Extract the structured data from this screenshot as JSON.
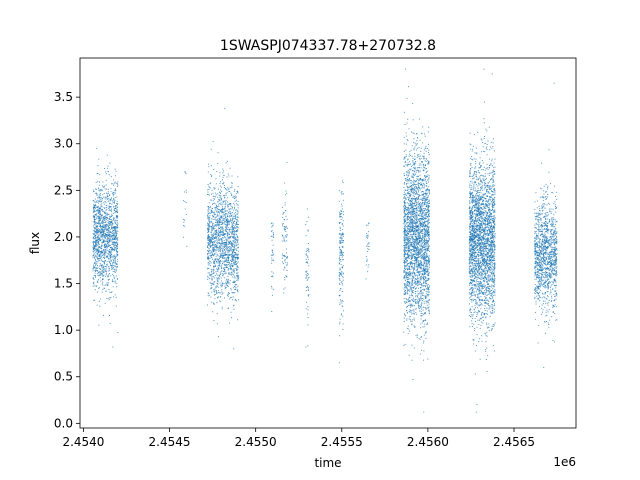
{
  "chart_data": {
    "type": "scatter",
    "title": "1SWASPJ074337.78+270732.8",
    "xlabel": "time",
    "ylabel": "flux",
    "x_offset_label": "1e6",
    "xlim": [
      2453980,
      2456860
    ],
    "ylim": [
      -0.05,
      3.92
    ],
    "x_ticks": [
      {
        "value": 2454000,
        "label": "2.4540"
      },
      {
        "value": 2454500,
        "label": "2.4545"
      },
      {
        "value": 2455000,
        "label": "2.4550"
      },
      {
        "value": 2455500,
        "label": "2.4555"
      },
      {
        "value": 2456000,
        "label": "2.4560"
      },
      {
        "value": 2456500,
        "label": "2.4565"
      }
    ],
    "y_ticks": [
      {
        "value": 0.0,
        "label": "0.0"
      },
      {
        "value": 0.5,
        "label": "0.5"
      },
      {
        "value": 1.0,
        "label": "1.0"
      },
      {
        "value": 1.5,
        "label": "1.5"
      },
      {
        "value": 2.0,
        "label": "2.0"
      },
      {
        "value": 2.5,
        "label": "2.5"
      },
      {
        "value": 3.0,
        "label": "3.0"
      },
      {
        "value": 3.5,
        "label": "3.5"
      }
    ],
    "marker_color": "#1f77b4",
    "grid": false,
    "clusters": [
      {
        "x_start": 2454055,
        "x_end": 2454200,
        "y_center": 2.0,
        "y_spread": 0.28,
        "y_min": 0.82,
        "y_max": 2.95,
        "count": 1400
      },
      {
        "x_start": 2454580,
        "x_end": 2454600,
        "y_center": 2.3,
        "y_spread": 0.25,
        "y_min": 1.9,
        "y_max": 2.7,
        "count": 18
      },
      {
        "x_start": 2454720,
        "x_end": 2454900,
        "y_center": 1.95,
        "y_spread": 0.3,
        "y_min": 0.8,
        "y_max": 3.38,
        "count": 1600
      },
      {
        "x_start": 2455090,
        "x_end": 2455105,
        "y_center": 1.75,
        "y_spread": 0.25,
        "y_min": 1.2,
        "y_max": 2.15,
        "count": 40
      },
      {
        "x_start": 2455155,
        "x_end": 2455185,
        "y_center": 2.0,
        "y_spread": 0.25,
        "y_min": 1.4,
        "y_max": 2.8,
        "count": 80
      },
      {
        "x_start": 2455290,
        "x_end": 2455310,
        "y_center": 1.6,
        "y_spread": 0.35,
        "y_min": 0.82,
        "y_max": 2.3,
        "count": 60
      },
      {
        "x_start": 2455485,
        "x_end": 2455510,
        "y_center": 1.8,
        "y_spread": 0.35,
        "y_min": 0.65,
        "y_max": 2.6,
        "count": 180
      },
      {
        "x_start": 2455640,
        "x_end": 2455660,
        "y_center": 1.9,
        "y_spread": 0.15,
        "y_min": 1.55,
        "y_max": 2.15,
        "count": 30
      },
      {
        "x_start": 2455860,
        "x_end": 2456010,
        "y_center": 2.0,
        "y_spread": 0.45,
        "y_min": 0.12,
        "y_max": 3.8,
        "count": 2600
      },
      {
        "x_start": 2456240,
        "x_end": 2456390,
        "y_center": 1.95,
        "y_spread": 0.42,
        "y_min": 0.12,
        "y_max": 3.8,
        "count": 2600
      },
      {
        "x_start": 2456620,
        "x_end": 2456750,
        "y_center": 1.8,
        "y_spread": 0.3,
        "y_min": 0.6,
        "y_max": 3.65,
        "count": 1200
      }
    ]
  }
}
